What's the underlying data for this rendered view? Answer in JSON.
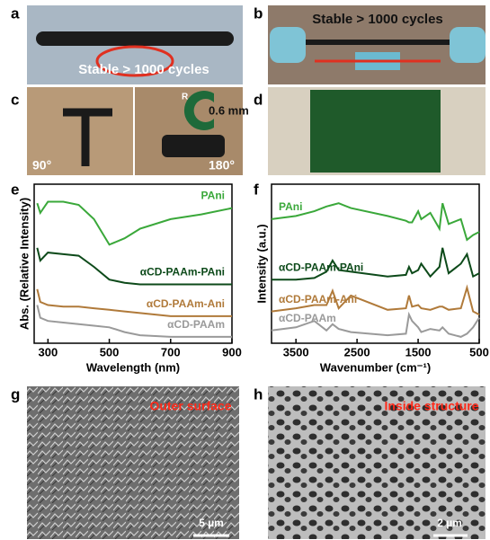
{
  "panels": {
    "a": {
      "letter": "a",
      "caption": "Stable > 1000 cycles"
    },
    "b": {
      "letter": "b",
      "caption": "Stable > 1000 cycles"
    },
    "c": {
      "letter": "c",
      "radius_symbol": "R",
      "radius": "0.6 mm",
      "angle_left": "90°",
      "angle_right": "180°"
    },
    "d": {
      "letter": "d"
    },
    "e": {
      "letter": "e"
    },
    "f": {
      "letter": "f"
    },
    "g": {
      "letter": "g",
      "caption": "Outer surface",
      "scale": "5 µm"
    },
    "h": {
      "letter": "h",
      "caption": "Inside structure",
      "scale": "2 µm"
    }
  },
  "chart_data": [
    {
      "type": "line",
      "xlabel": "Wavelength (nm)",
      "ylabel": "Abs. (Relative Intensity)",
      "x": [
        265,
        275,
        300,
        350,
        400,
        450,
        500,
        550,
        600,
        700,
        800,
        900
      ],
      "xlim": [
        255,
        900
      ],
      "xticks": [
        300,
        500,
        700,
        900
      ],
      "ylim": [
        0,
        100
      ],
      "series": [
        {
          "name": "PAni",
          "color": "#3aa83a",
          "values": [
            88,
            82,
            89,
            89,
            87,
            78,
            62,
            66,
            72,
            78,
            81,
            85
          ]
        },
        {
          "name": "αCD-PAAm-PAni",
          "color": "#0d4a1a",
          "values": [
            60,
            52,
            57,
            56,
            55,
            48,
            40,
            38,
            37,
            37,
            37,
            37
          ]
        },
        {
          "name": "αCD-PAAm-Ani",
          "color": "#b07a3a",
          "values": [
            34,
            26,
            24,
            23,
            23,
            22,
            21,
            20,
            19,
            17,
            17,
            17
          ]
        },
        {
          "name": "αCD-PAAm",
          "color": "#9a9a9a",
          "values": [
            24,
            16,
            14,
            13,
            12,
            11,
            10,
            7,
            5,
            4,
            4,
            4
          ]
        }
      ]
    },
    {
      "type": "line",
      "xlabel": "Wavenumber (cm⁻¹)",
      "ylabel": "Intensity (a.u.)",
      "x": [
        3900,
        3500,
        3200,
        3000,
        2900,
        2800,
        2600,
        2000,
        1700,
        1650,
        1600,
        1500,
        1450,
        1300,
        1150,
        1100,
        1000,
        800,
        700,
        600,
        500
      ],
      "xlim": [
        3900,
        500
      ],
      "xticks": [
        3500,
        2500,
        1500,
        500
      ],
      "ylim": [
        0,
        100
      ],
      "series": [
        {
          "name": "PAni",
          "color": "#3aa83a",
          "values": [
            78,
            80,
            83,
            86,
            87,
            88,
            85,
            80,
            77,
            76,
            76,
            83,
            78,
            82,
            72,
            88,
            75,
            78,
            65,
            68,
            70
          ]
        },
        {
          "name": "αCD-PAAm-PAni",
          "color": "#0d4a1a",
          "values": [
            40,
            40,
            41,
            45,
            52,
            46,
            45,
            42,
            43,
            48,
            44,
            46,
            50,
            42,
            48,
            60,
            44,
            50,
            56,
            42,
            44
          ]
        },
        {
          "name": "αCD-PAAm-Ani",
          "color": "#b07a3a",
          "values": [
            20,
            22,
            24,
            24,
            33,
            22,
            30,
            21,
            22,
            30,
            23,
            24,
            22,
            21,
            23,
            23,
            21,
            22,
            35,
            20,
            18
          ]
        },
        {
          "name": "αCD-PAAm",
          "color": "#9a9a9a",
          "values": [
            8,
            10,
            14,
            8,
            12,
            9,
            7,
            5,
            6,
            18,
            14,
            10,
            7,
            9,
            8,
            10,
            6,
            4,
            6,
            10,
            16
          ]
        }
      ]
    }
  ]
}
